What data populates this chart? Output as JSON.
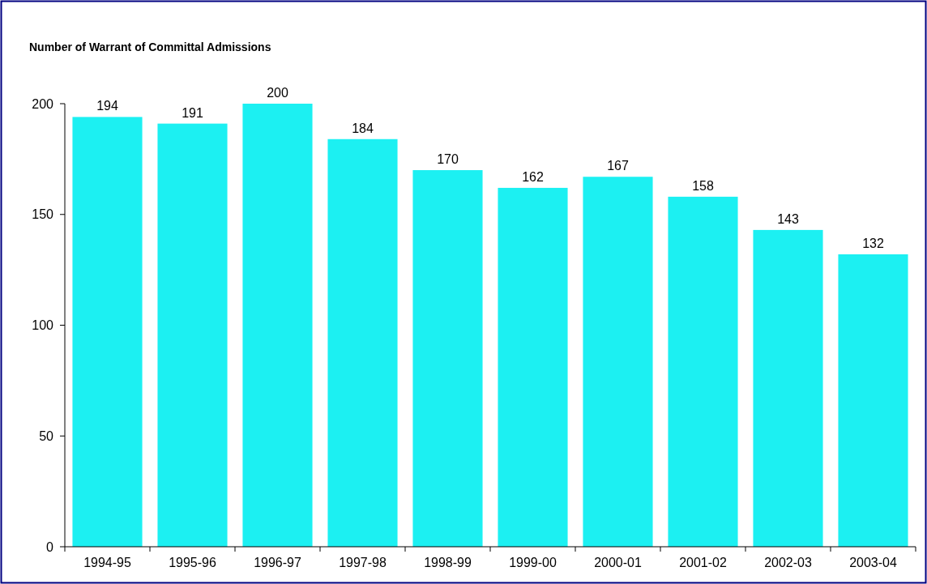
{
  "chart_data": {
    "type": "bar",
    "title": "Number of Warrant of Committal Admissions",
    "categories": [
      "1994-95",
      "1995-96",
      "1996-97",
      "1997-98",
      "1998-99",
      "1999-00",
      "2000-01",
      "2001-02",
      "2002-03",
      "2003-04"
    ],
    "values": [
      194,
      191,
      200,
      184,
      170,
      162,
      167,
      158,
      143,
      132
    ],
    "color": "#1cf0f2",
    "ylim": [
      0,
      200
    ],
    "yticks": [
      0,
      50,
      100,
      150,
      200
    ],
    "data_labels": true
  }
}
